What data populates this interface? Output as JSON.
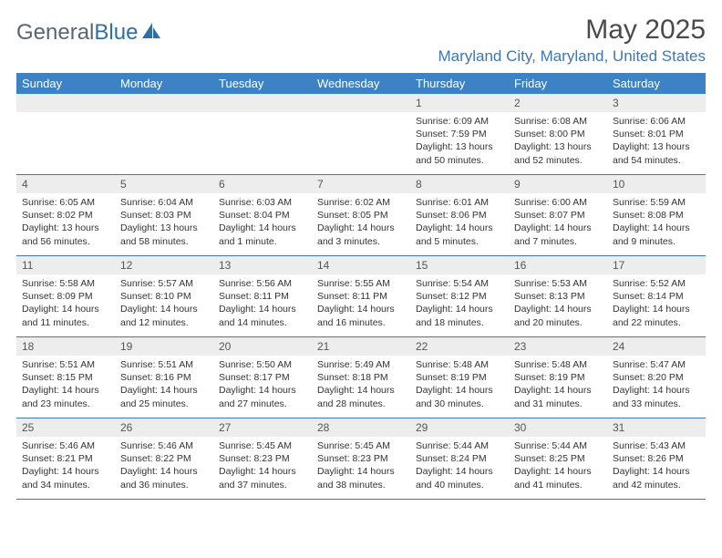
{
  "logo": {
    "word1": "General",
    "word2": "Blue"
  },
  "title": "May 2025",
  "location": "Maryland City, Maryland, United States",
  "colors": {
    "header_bg": "#3d82c4",
    "header_text": "#ffffff",
    "accent": "#3d78b2",
    "daynum_bg": "#ededed",
    "body_text": "#333333",
    "logo_gray": "#5a6570"
  },
  "day_headers": [
    "Sunday",
    "Monday",
    "Tuesday",
    "Wednesday",
    "Thursday",
    "Friday",
    "Saturday"
  ],
  "weeks": [
    [
      {
        "n": "",
        "sr": "",
        "ss": "",
        "dl": ""
      },
      {
        "n": "",
        "sr": "",
        "ss": "",
        "dl": ""
      },
      {
        "n": "",
        "sr": "",
        "ss": "",
        "dl": ""
      },
      {
        "n": "",
        "sr": "",
        "ss": "",
        "dl": ""
      },
      {
        "n": "1",
        "sr": "Sunrise: 6:09 AM",
        "ss": "Sunset: 7:59 PM",
        "dl": "Daylight: 13 hours and 50 minutes."
      },
      {
        "n": "2",
        "sr": "Sunrise: 6:08 AM",
        "ss": "Sunset: 8:00 PM",
        "dl": "Daylight: 13 hours and 52 minutes."
      },
      {
        "n": "3",
        "sr": "Sunrise: 6:06 AM",
        "ss": "Sunset: 8:01 PM",
        "dl": "Daylight: 13 hours and 54 minutes."
      }
    ],
    [
      {
        "n": "4",
        "sr": "Sunrise: 6:05 AM",
        "ss": "Sunset: 8:02 PM",
        "dl": "Daylight: 13 hours and 56 minutes."
      },
      {
        "n": "5",
        "sr": "Sunrise: 6:04 AM",
        "ss": "Sunset: 8:03 PM",
        "dl": "Daylight: 13 hours and 58 minutes."
      },
      {
        "n": "6",
        "sr": "Sunrise: 6:03 AM",
        "ss": "Sunset: 8:04 PM",
        "dl": "Daylight: 14 hours and 1 minute."
      },
      {
        "n": "7",
        "sr": "Sunrise: 6:02 AM",
        "ss": "Sunset: 8:05 PM",
        "dl": "Daylight: 14 hours and 3 minutes."
      },
      {
        "n": "8",
        "sr": "Sunrise: 6:01 AM",
        "ss": "Sunset: 8:06 PM",
        "dl": "Daylight: 14 hours and 5 minutes."
      },
      {
        "n": "9",
        "sr": "Sunrise: 6:00 AM",
        "ss": "Sunset: 8:07 PM",
        "dl": "Daylight: 14 hours and 7 minutes."
      },
      {
        "n": "10",
        "sr": "Sunrise: 5:59 AM",
        "ss": "Sunset: 8:08 PM",
        "dl": "Daylight: 14 hours and 9 minutes."
      }
    ],
    [
      {
        "n": "11",
        "sr": "Sunrise: 5:58 AM",
        "ss": "Sunset: 8:09 PM",
        "dl": "Daylight: 14 hours and 11 minutes."
      },
      {
        "n": "12",
        "sr": "Sunrise: 5:57 AM",
        "ss": "Sunset: 8:10 PM",
        "dl": "Daylight: 14 hours and 12 minutes."
      },
      {
        "n": "13",
        "sr": "Sunrise: 5:56 AM",
        "ss": "Sunset: 8:11 PM",
        "dl": "Daylight: 14 hours and 14 minutes."
      },
      {
        "n": "14",
        "sr": "Sunrise: 5:55 AM",
        "ss": "Sunset: 8:11 PM",
        "dl": "Daylight: 14 hours and 16 minutes."
      },
      {
        "n": "15",
        "sr": "Sunrise: 5:54 AM",
        "ss": "Sunset: 8:12 PM",
        "dl": "Daylight: 14 hours and 18 minutes."
      },
      {
        "n": "16",
        "sr": "Sunrise: 5:53 AM",
        "ss": "Sunset: 8:13 PM",
        "dl": "Daylight: 14 hours and 20 minutes."
      },
      {
        "n": "17",
        "sr": "Sunrise: 5:52 AM",
        "ss": "Sunset: 8:14 PM",
        "dl": "Daylight: 14 hours and 22 minutes."
      }
    ],
    [
      {
        "n": "18",
        "sr": "Sunrise: 5:51 AM",
        "ss": "Sunset: 8:15 PM",
        "dl": "Daylight: 14 hours and 23 minutes."
      },
      {
        "n": "19",
        "sr": "Sunrise: 5:51 AM",
        "ss": "Sunset: 8:16 PM",
        "dl": "Daylight: 14 hours and 25 minutes."
      },
      {
        "n": "20",
        "sr": "Sunrise: 5:50 AM",
        "ss": "Sunset: 8:17 PM",
        "dl": "Daylight: 14 hours and 27 minutes."
      },
      {
        "n": "21",
        "sr": "Sunrise: 5:49 AM",
        "ss": "Sunset: 8:18 PM",
        "dl": "Daylight: 14 hours and 28 minutes."
      },
      {
        "n": "22",
        "sr": "Sunrise: 5:48 AM",
        "ss": "Sunset: 8:19 PM",
        "dl": "Daylight: 14 hours and 30 minutes."
      },
      {
        "n": "23",
        "sr": "Sunrise: 5:48 AM",
        "ss": "Sunset: 8:19 PM",
        "dl": "Daylight: 14 hours and 31 minutes."
      },
      {
        "n": "24",
        "sr": "Sunrise: 5:47 AM",
        "ss": "Sunset: 8:20 PM",
        "dl": "Daylight: 14 hours and 33 minutes."
      }
    ],
    [
      {
        "n": "25",
        "sr": "Sunrise: 5:46 AM",
        "ss": "Sunset: 8:21 PM",
        "dl": "Daylight: 14 hours and 34 minutes."
      },
      {
        "n": "26",
        "sr": "Sunrise: 5:46 AM",
        "ss": "Sunset: 8:22 PM",
        "dl": "Daylight: 14 hours and 36 minutes."
      },
      {
        "n": "27",
        "sr": "Sunrise: 5:45 AM",
        "ss": "Sunset: 8:23 PM",
        "dl": "Daylight: 14 hours and 37 minutes."
      },
      {
        "n": "28",
        "sr": "Sunrise: 5:45 AM",
        "ss": "Sunset: 8:23 PM",
        "dl": "Daylight: 14 hours and 38 minutes."
      },
      {
        "n": "29",
        "sr": "Sunrise: 5:44 AM",
        "ss": "Sunset: 8:24 PM",
        "dl": "Daylight: 14 hours and 40 minutes."
      },
      {
        "n": "30",
        "sr": "Sunrise: 5:44 AM",
        "ss": "Sunset: 8:25 PM",
        "dl": "Daylight: 14 hours and 41 minutes."
      },
      {
        "n": "31",
        "sr": "Sunrise: 5:43 AM",
        "ss": "Sunset: 8:26 PM",
        "dl": "Daylight: 14 hours and 42 minutes."
      }
    ]
  ]
}
